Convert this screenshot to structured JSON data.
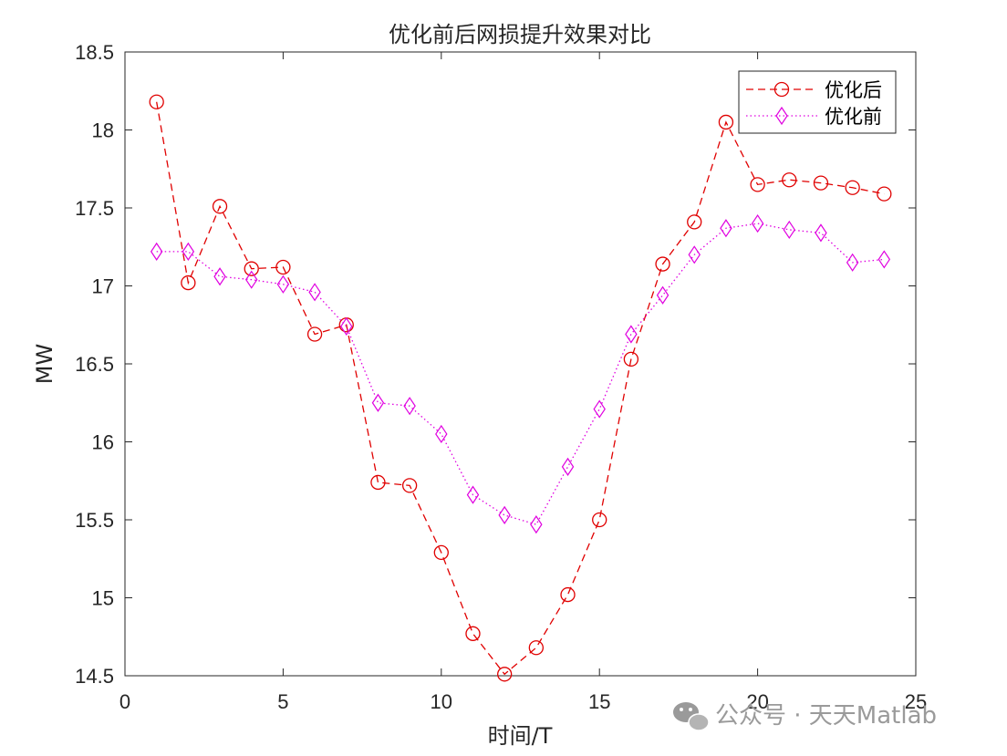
{
  "chart_data": {
    "type": "line",
    "title": "优化前后网损提升效果对比",
    "xlabel": "时间/T",
    "ylabel": "MW",
    "xlim": [
      0,
      25
    ],
    "ylim": [
      14.5,
      18.5
    ],
    "xticks": [
      0,
      5,
      10,
      15,
      20,
      25
    ],
    "yticks": [
      14.5,
      15,
      15.5,
      16,
      16.5,
      17,
      17.5,
      18,
      18.5
    ],
    "grid": false,
    "legend_position": "top-right",
    "x": [
      1,
      2,
      3,
      4,
      5,
      6,
      7,
      8,
      9,
      10,
      11,
      12,
      13,
      14,
      15,
      16,
      17,
      18,
      19,
      20,
      21,
      22,
      23,
      24
    ],
    "series": [
      {
        "name": "优化后",
        "color": "#e00000",
        "line_style": "dashed",
        "marker": "circle",
        "values": [
          18.18,
          17.02,
          17.51,
          17.11,
          17.12,
          16.69,
          16.75,
          15.74,
          15.72,
          15.29,
          14.77,
          14.51,
          14.68,
          15.02,
          15.5,
          16.53,
          17.14,
          17.41,
          18.05,
          17.65,
          17.68,
          17.66,
          17.63,
          17.59
        ]
      },
      {
        "name": "优化前",
        "color": "#e000e0",
        "line_style": "dotted",
        "marker": "diamond",
        "values": [
          17.22,
          17.22,
          17.06,
          17.04,
          17.01,
          16.96,
          16.74,
          16.25,
          16.23,
          16.05,
          15.66,
          15.53,
          15.47,
          15.84,
          16.21,
          16.69,
          16.94,
          17.2,
          17.37,
          17.4,
          17.36,
          17.34,
          17.15,
          17.17
        ]
      }
    ]
  },
  "watermark": {
    "text": "公众号 · 天天Matlab",
    "icon": "wechat-icon"
  }
}
